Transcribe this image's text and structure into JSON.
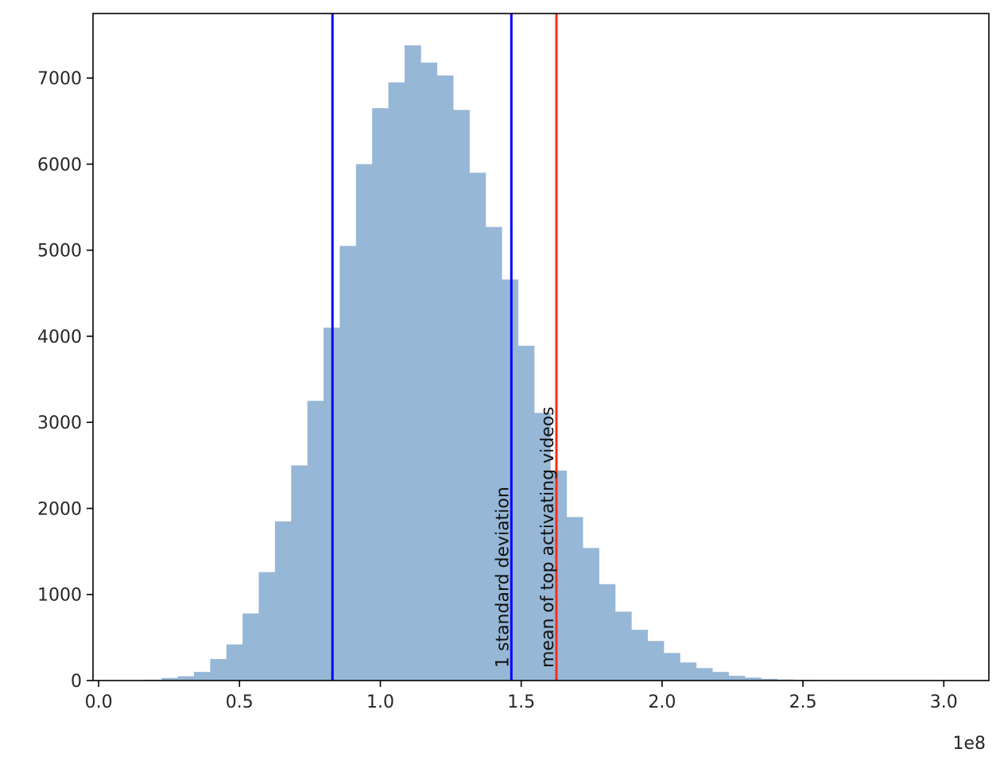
{
  "chart_data": {
    "type": "bar",
    "title": "",
    "xlabel": "",
    "ylabel": "",
    "x_offset_label": "1e8",
    "x_scale": 100000000,
    "xlim": [
      -0.02,
      3.16
    ],
    "ylim": [
      0,
      7750
    ],
    "grid": false,
    "bar_color": "#97b7d6",
    "x_ticks": [
      0.0,
      0.5,
      1.0,
      1.5,
      2.0,
      2.5,
      3.0
    ],
    "x_tick_labels": [
      "0.0",
      "0.5",
      "1.0",
      "1.5",
      "2.0",
      "2.5",
      "3.0"
    ],
    "y_ticks": [
      0,
      1000,
      2000,
      3000,
      4000,
      5000,
      6000,
      7000
    ],
    "y_tick_labels": [
      "0",
      "1000",
      "2000",
      "3000",
      "4000",
      "5000",
      "6000",
      "7000"
    ],
    "bin_width": 0.0575,
    "bin_start": 0.1659,
    "counts": [
      10,
      30,
      50,
      100,
      250,
      420,
      780,
      1260,
      1850,
      2500,
      3250,
      4100,
      5050,
      6000,
      6650,
      6950,
      7380,
      7180,
      7030,
      6630,
      5900,
      5270,
      4660,
      3890,
      3110,
      2440,
      1900,
      1540,
      1120,
      800,
      590,
      460,
      320,
      210,
      145,
      100,
      55,
      35,
      20,
      12,
      8,
      5,
      3,
      2,
      1,
      1,
      1,
      1,
      1,
      1,
      1,
      1
    ],
    "vlines": [
      {
        "x": 0.83,
        "color": "#0000ff",
        "label": ""
      },
      {
        "x": 1.465,
        "color": "#0000ff",
        "label": "1 standard deviation"
      },
      {
        "x": 1.625,
        "color": "#ff2a1a",
        "label": "mean of top activating videos"
      }
    ]
  }
}
